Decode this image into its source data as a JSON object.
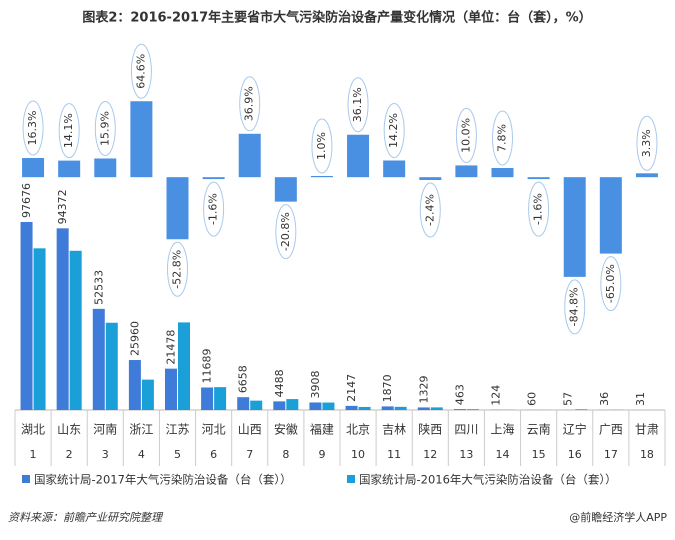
{
  "chart_data": {
    "type": "bar",
    "title": "图表2：2016-2017年主要省市大气污染防治设备产量变化情况（单位：台（套），%）",
    "categories": [
      "湖北",
      "山东",
      "河南",
      "浙江",
      "江苏",
      "河北",
      "山西",
      "安徽",
      "福建",
      "北京",
      "吉林",
      "陕西",
      "四川",
      "上海",
      "云南",
      "辽宁",
      "广西",
      "甘肃"
    ],
    "ranks": [
      1,
      2,
      3,
      4,
      5,
      6,
      7,
      8,
      9,
      10,
      11,
      12,
      13,
      14,
      15,
      16,
      17,
      18
    ],
    "series": [
      {
        "name": "国家统计局-2017年大气污染防治设备（台（套））",
        "color": "#3f7bd9",
        "values": [
          97676,
          94372,
          52533,
          25960,
          21478,
          11689,
          6658,
          4488,
          3908,
          2147,
          1870,
          1329,
          463,
          124,
          60,
          57,
          36,
          31
        ]
      },
      {
        "name": "国家统计局-2016年大气污染防治设备（台（套））",
        "color": "#1a9fd8",
        "values": [
          83986,
          82710,
          45326,
          15772,
          45504,
          11879,
          4863,
          5667,
          3869,
          1578,
          1637,
          1362,
          421,
          115,
          61,
          375,
          103,
          30
        ]
      }
    ],
    "ylim": [
      0,
      100000
    ],
    "growth": {
      "color": "#4a90e2",
      "values": [
        16.3,
        14.1,
        15.9,
        64.6,
        -52.8,
        -1.6,
        36.9,
        -20.8,
        1.0,
        36.1,
        14.2,
        -2.4,
        10.0,
        7.8,
        -1.6,
        -84.8,
        -65.0,
        3.3
      ],
      "value_labels": [
        "16.3%",
        "14.1%",
        "15.9%",
        "64.6%",
        "-52.8%",
        "-1.6%",
        "36.9%",
        "-20.8%",
        "1.0%",
        "36.1%",
        "14.2%",
        "-2.4%",
        "10.0%",
        "7.8%",
        "-1.6%",
        "-84.8%",
        "-65.0%",
        "3.3%"
      ]
    },
    "y2lim": [
      -90,
      75
    ],
    "source": "资料来源：前瞻产业研究院整理",
    "brand": "@前瞻经济学人APP"
  }
}
